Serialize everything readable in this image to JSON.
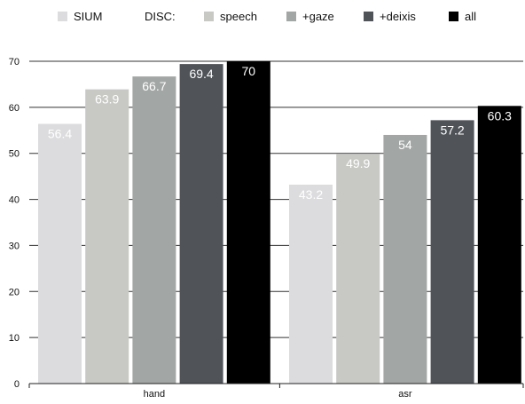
{
  "chart_data": {
    "type": "bar",
    "title": "",
    "xlabel": "",
    "ylabel": "",
    "categories": [
      "hand",
      "asr"
    ],
    "ylim": [
      0,
      70
    ],
    "yticks": [
      0,
      10,
      20,
      30,
      40,
      50,
      60,
      70
    ],
    "grid": true,
    "legend_position": "top",
    "legend_group_label": "DISC:",
    "series": [
      {
        "name": "SIUM",
        "color": "#dcdcde",
        "values": [
          56.4,
          43.2
        ],
        "labels": [
          "56.4",
          "43.2"
        ]
      },
      {
        "name": "speech",
        "color": "#c8c8c4",
        "values": [
          63.9,
          49.9
        ],
        "labels": [
          "63.9",
          "49.9"
        ]
      },
      {
        "name": "+gaze",
        "color": "#a2a6a4",
        "values": [
          66.7,
          54
        ],
        "labels": [
          "66.7",
          "54"
        ]
      },
      {
        "name": "+deixis",
        "color": "#505459",
        "values": [
          69.4,
          57.2
        ],
        "labels": [
          "69.4",
          "57.2"
        ]
      },
      {
        "name": "all",
        "color": "#000000",
        "values": [
          70,
          60.3
        ],
        "labels": [
          "70",
          "60.3"
        ]
      }
    ]
  }
}
